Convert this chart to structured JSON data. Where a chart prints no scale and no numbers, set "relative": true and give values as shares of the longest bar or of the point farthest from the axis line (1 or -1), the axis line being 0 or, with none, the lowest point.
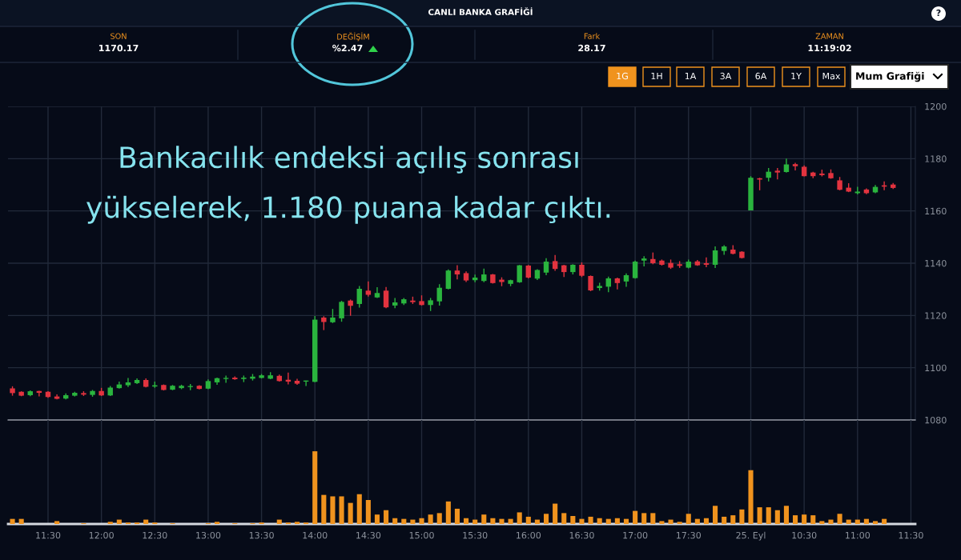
{
  "chart_data": [
    {
      "type": "candlestick",
      "title": "CANLI BANKA GRAFİĞİ",
      "annotations": [
        "SON",
        "1170.17",
        "DEĞİŞİM",
        "%2.47",
        "Fark",
        "28.17",
        "ZAMAN",
        "11:19:02",
        "1G",
        "1H",
        "1A",
        "3A",
        "6A",
        "1Y",
        "Max",
        "Mum Grafiği",
        "?",
        "Bankacılık endeksi açılış sonrası\nyükselerek, 1.180 puana kadar çıktı."
      ],
      "categories": [
        null,
        null,
        null,
        null,
        null,
        null,
        null,
        null,
        null,
        null,
        null,
        null,
        null,
        null,
        null,
        null,
        null,
        null,
        null,
        null,
        null,
        null,
        null,
        null,
        null,
        null,
        null,
        null,
        null,
        null,
        null,
        null,
        null,
        null,
        null,
        null,
        null,
        null,
        null,
        null,
        null,
        null,
        null,
        null,
        null,
        null,
        null,
        null,
        null,
        null,
        null,
        null,
        null,
        null,
        null,
        null,
        null,
        null,
        null,
        null,
        null,
        null,
        null,
        null,
        null,
        null,
        null,
        null,
        null,
        null,
        null,
        null,
        null,
        null,
        null,
        null,
        null,
        null,
        null,
        null,
        null,
        null,
        null,
        null,
        null,
        null,
        null,
        null,
        null,
        null,
        null,
        null,
        null,
        null,
        null,
        null,
        null,
        null,
        null,
        null,
        null,
        null
      ],
      "ohlc": [
        [
          1092.1,
          1092.9,
          1089.3,
          1090.3
        ],
        [
          1090.8,
          1091.0,
          1089.1,
          1089.3
        ],
        [
          1089.5,
          1091.3,
          1089.1,
          1091.0
        ],
        [
          1091.1,
          1091.2,
          1089.0,
          1090.4
        ],
        [
          1090.8,
          1091.0,
          1088.5,
          1088.8
        ],
        [
          1089.0,
          1089.8,
          1087.9,
          1088.1
        ],
        [
          1088.2,
          1090.2,
          1087.9,
          1089.5
        ],
        [
          1089.3,
          1090.8,
          1089.0,
          1090.4
        ],
        [
          1090.3,
          1091.0,
          1089.2,
          1089.7
        ],
        [
          1089.6,
          1091.5,
          1088.9,
          1091.1
        ],
        [
          1091.1,
          1092.3,
          1089.2,
          1089.4
        ],
        [
          1089.4,
          1093.0,
          1089.2,
          1092.4
        ],
        [
          1092.2,
          1094.7,
          1092.0,
          1093.6
        ],
        [
          1093.3,
          1096.1,
          1092.6,
          1094.4
        ],
        [
          1094.1,
          1095.9,
          1093.8,
          1095.3
        ],
        [
          1095.3,
          1095.9,
          1092.5,
          1092.7
        ],
        [
          1092.8,
          1094.7,
          1092.3,
          1093.3
        ],
        [
          1093.4,
          1093.6,
          1091.3,
          1091.5
        ],
        [
          1091.6,
          1093.4,
          1091.4,
          1093.1
        ],
        [
          1092.2,
          1093.5,
          1091.8,
          1093.1
        ],
        [
          1092.6,
          1093.8,
          1091.4,
          1093.0
        ],
        [
          1093.1,
          1093.3,
          1091.7,
          1091.9
        ],
        [
          1092.0,
          1095.5,
          1091.8,
          1094.9
        ],
        [
          1094.4,
          1096.2,
          1093.5,
          1096.0
        ],
        [
          1095.7,
          1097.0,
          1094.2,
          1096.1
        ],
        [
          1096.2,
          1096.7,
          1095.4,
          1095.6
        ],
        [
          1095.7,
          1097.0,
          1094.5,
          1096.2
        ],
        [
          1095.8,
          1097.6,
          1095.1,
          1096.6
        ],
        [
          1096.1,
          1097.6,
          1095.9,
          1097.1
        ],
        [
          1095.8,
          1098.3,
          1095.6,
          1097.1
        ],
        [
          1096.9,
          1097.4,
          1094.7,
          1094.9
        ],
        [
          1095.4,
          1098.1,
          1093.6,
          1094.7
        ],
        [
          1095.0,
          1095.8,
          1093.5,
          1093.9
        ],
        [
          1094.7,
          1095.1,
          1093.0,
          1095.1
        ],
        [
          1094.6,
          1119.8,
          1094.5,
          1118.4
        ],
        [
          1119.2,
          1119.7,
          1114.4,
          1117.5
        ],
        [
          1117.4,
          1122.5,
          1117.1,
          1119.2
        ],
        [
          1118.9,
          1125.6,
          1117.6,
          1125.2
        ],
        [
          1125.7,
          1126.1,
          1119.9,
          1123.7
        ],
        [
          1124.4,
          1131.3,
          1123.0,
          1130.2
        ],
        [
          1129.5,
          1133.0,
          1127.2,
          1127.9
        ],
        [
          1126.9,
          1130.8,
          1126.7,
          1128.6
        ],
        [
          1129.5,
          1130.9,
          1122.8,
          1123.1
        ],
        [
          1123.8,
          1126.7,
          1122.8,
          1125.0
        ],
        [
          1124.6,
          1126.7,
          1124.0,
          1126.2
        ],
        [
          1125.7,
          1127.2,
          1124.4,
          1125.1
        ],
        [
          1125.5,
          1127.7,
          1123.8,
          1124.0
        ],
        [
          1124.0,
          1126.7,
          1121.7,
          1125.8
        ],
        [
          1125.4,
          1132.0,
          1123.8,
          1130.6
        ],
        [
          1130.2,
          1137.6,
          1130.0,
          1137.2
        ],
        [
          1137.2,
          1139.2,
          1133.8,
          1135.7
        ],
        [
          1136.2,
          1136.9,
          1132.8,
          1133.4
        ],
        [
          1133.5,
          1135.6,
          1132.7,
          1134.5
        ],
        [
          1133.2,
          1137.9,
          1132.7,
          1135.7
        ],
        [
          1135.7,
          1135.9,
          1132.2,
          1132.4
        ],
        [
          1133.7,
          1134.6,
          1131.2,
          1132.8
        ],
        [
          1132.1,
          1133.7,
          1131.2,
          1133.5
        ],
        [
          1132.7,
          1139.3,
          1132.5,
          1139.2
        ],
        [
          1139.1,
          1139.3,
          1134.2,
          1134.5
        ],
        [
          1134.1,
          1137.7,
          1133.6,
          1137.4
        ],
        [
          1136.4,
          1141.9,
          1135.4,
          1140.6
        ],
        [
          1140.8,
          1143.1,
          1137.1,
          1137.8
        ],
        [
          1139.2,
          1139.4,
          1134.7,
          1136.6
        ],
        [
          1136.6,
          1139.6,
          1135.7,
          1139.4
        ],
        [
          1139.4,
          1140.3,
          1134.7,
          1135.2
        ],
        [
          1135.1,
          1135.3,
          1129.3,
          1129.6
        ],
        [
          1130.5,
          1132.5,
          1129.5,
          1131.3
        ],
        [
          1131.0,
          1134.9,
          1128.9,
          1134.2
        ],
        [
          1134.2,
          1134.5,
          1130.0,
          1132.4
        ],
        [
          1133.0,
          1136.1,
          1131.0,
          1135.4
        ],
        [
          1134.3,
          1141.0,
          1134.1,
          1140.6
        ],
        [
          1141.0,
          1142.7,
          1138.8,
          1141.8
        ],
        [
          1141.6,
          1144.1,
          1139.6,
          1140.0
        ],
        [
          1141.0,
          1141.4,
          1139.1,
          1139.4
        ],
        [
          1140.1,
          1141.4,
          1137.8,
          1138.3
        ],
        [
          1139.6,
          1140.8,
          1138.2,
          1139.0
        ],
        [
          1138.3,
          1141.4,
          1138.0,
          1140.6
        ],
        [
          1140.7,
          1141.2,
          1139.0,
          1139.2
        ],
        [
          1140.0,
          1142.2,
          1138.5,
          1139.4
        ],
        [
          1139.4,
          1146.4,
          1138.2,
          1144.9
        ],
        [
          1144.7,
          1146.9,
          1143.2,
          1146.4
        ],
        [
          1145.2,
          1146.9,
          1143.4,
          1143.6
        ],
        [
          1144.4,
          1144.6,
          1141.8,
          1142.0
        ],
        [
          1160.2,
          1173.3,
          1160.2,
          1172.7
        ],
        [
          1172.5,
          1172.7,
          1167.9,
          1172.0
        ],
        [
          1172.7,
          1176.4,
          1171.3,
          1175.0
        ],
        [
          1175.4,
          1176.4,
          1172.1,
          1174.7
        ],
        [
          1174.9,
          1180.0,
          1174.7,
          1177.8
        ],
        [
          1177.9,
          1178.4,
          1175.5,
          1177.1
        ],
        [
          1176.9,
          1177.4,
          1173.2,
          1173.3
        ],
        [
          1174.7,
          1175.0,
          1172.5,
          1173.3
        ],
        [
          1174.3,
          1175.8,
          1173.2,
          1173.7
        ],
        [
          1174.5,
          1175.9,
          1172.3,
          1172.5
        ],
        [
          1171.7,
          1173.0,
          1167.9,
          1168.1
        ],
        [
          1168.9,
          1170.6,
          1167.2,
          1167.4
        ],
        [
          1166.8,
          1169.2,
          1166.3,
          1167.4
        ],
        [
          1168.2,
          1168.6,
          1166.4,
          1166.8
        ],
        [
          1167.1,
          1169.9,
          1166.8,
          1169.2
        ],
        [
          1169.8,
          1171.3,
          1167.9,
          1169.3
        ],
        [
          1170.1,
          1170.7,
          1168.4,
          1168.8
        ],
        null,
        null
      ],
      "colors": [
        "#e2333f",
        "#e2333f",
        "#2ab43e",
        "#e2333f",
        "#e2333f",
        "#e2333f",
        "#2ab43e",
        "#2ab43e",
        "#e2333f",
        "#2ab43e",
        "#e2333f",
        "#2ab43e",
        "#2ab43e",
        "#2ab43e",
        "#2ab43e",
        "#e2333f",
        "#2ab43e",
        "#e2333f",
        "#2ab43e",
        "#2ab43e",
        "#2ab43e",
        "#e2333f",
        "#2ab43e",
        "#2ab43e",
        "#2ab43e",
        "#e2333f",
        "#2ab43e",
        "#2ab43e",
        "#2ab43e",
        "#2ab43e",
        "#e2333f",
        "#e2333f",
        "#e2333f",
        "#2ab43e",
        "#2ab43e",
        "#e2333f",
        "#2ab43e",
        "#2ab43e",
        "#e2333f",
        "#2ab43e",
        "#e2333f",
        "#2ab43e",
        "#e2333f",
        "#2ab43e",
        "#2ab43e",
        "#e2333f",
        "#e2333f",
        "#2ab43e",
        "#2ab43e",
        "#2ab43e",
        "#e2333f",
        "#e2333f",
        "#2ab43e",
        "#2ab43e",
        "#e2333f",
        "#e2333f",
        "#2ab43e",
        "#2ab43e",
        "#e2333f",
        "#2ab43e",
        "#2ab43e",
        "#e2333f",
        "#e2333f",
        "#2ab43e",
        "#e2333f",
        "#e2333f",
        "#2ab43e",
        "#2ab43e",
        "#e2333f",
        "#2ab43e",
        "#2ab43e",
        "#2ab43e",
        "#e2333f",
        "#e2333f",
        "#e2333f",
        "#e2333f",
        "#2ab43e",
        "#e2333f",
        "#e2333f",
        "#2ab43e",
        "#2ab43e",
        "#e2333f",
        "#e2333f",
        "#2ab43e",
        "#e2333f",
        "#2ab43e",
        "#e2333f",
        "#2ab43e",
        "#e2333f",
        "#e2333f",
        "#e2333f",
        "#e2333f",
        "#e2333f",
        "#e2333f",
        "#e2333f",
        "#2ab43e",
        "#e2333f",
        "#2ab43e",
        "#e2333f",
        "#e2333f",
        null,
        null
      ],
      "ylim": [
        1080,
        1200
      ],
      "yticks": [
        1080,
        1100,
        1120,
        1140,
        1160,
        1180,
        1200
      ],
      "grid": true
    },
    {
      "type": "bar",
      "relative": true,
      "color": "#f0931e",
      "grid": "x",
      "tick_labels": "x",
      "categories": [
        null,
        null,
        null,
        null,
        "11:30",
        null,
        null,
        null,
        null,
        null,
        "12:00",
        null,
        null,
        null,
        null,
        null,
        "12:30",
        null,
        null,
        null,
        null,
        null,
        "13:00",
        null,
        null,
        null,
        null,
        null,
        "13:30",
        null,
        null,
        null,
        null,
        null,
        "14:00",
        null,
        null,
        null,
        null,
        null,
        "14:30",
        null,
        null,
        null,
        null,
        null,
        "15:00",
        null,
        null,
        null,
        null,
        null,
        "15:30",
        null,
        null,
        null,
        null,
        null,
        "16:00",
        null,
        null,
        null,
        null,
        null,
        "16:30",
        null,
        null,
        null,
        null,
        null,
        "17:00",
        null,
        null,
        null,
        null,
        null,
        "17:30",
        null,
        null,
        null,
        null,
        null,
        null,
        "25. Eyl",
        null,
        null,
        null,
        null,
        null,
        "10:30",
        null,
        null,
        null,
        null,
        null,
        "11:00",
        null,
        null,
        null,
        null,
        null,
        "11:30"
      ],
      "values": [
        0.07,
        0.07,
        null,
        null,
        null,
        0.04,
        null,
        null,
        0.01,
        null,
        null,
        0.03,
        0.06,
        0.02,
        0.02,
        0.06,
        0.02,
        null,
        0.01,
        null,
        null,
        null,
        0.01,
        0.03,
        null,
        0.01,
        null,
        0.01,
        0.02,
        null,
        0.06,
        0.02,
        0.03,
        0.02,
        1,
        0.4,
        0.38,
        0.38,
        0.29,
        0.41,
        0.33,
        0.13,
        0.19,
        0.08,
        0.07,
        0.06,
        0.08,
        0.13,
        0.15,
        0.31,
        0.21,
        0.08,
        0.06,
        0.13,
        0.08,
        0.07,
        0.07,
        0.16,
        0.1,
        0.06,
        0.14,
        0.28,
        0.15,
        0.11,
        0.07,
        0.1,
        0.08,
        0.07,
        0.08,
        0.07,
        0.18,
        0.15,
        0.15,
        0.04,
        0.06,
        0.03,
        0.14,
        0.07,
        0.08,
        0.25,
        0.1,
        0.12,
        0.2,
        0.74,
        0.23,
        0.23,
        0.19,
        0.25,
        0.12,
        0.13,
        0.12,
        0.04,
        0.06,
        0.14,
        0.06,
        0.06,
        0.07,
        0.04,
        0.07,
        null,
        null,
        null
      ]
    }
  ]
}
